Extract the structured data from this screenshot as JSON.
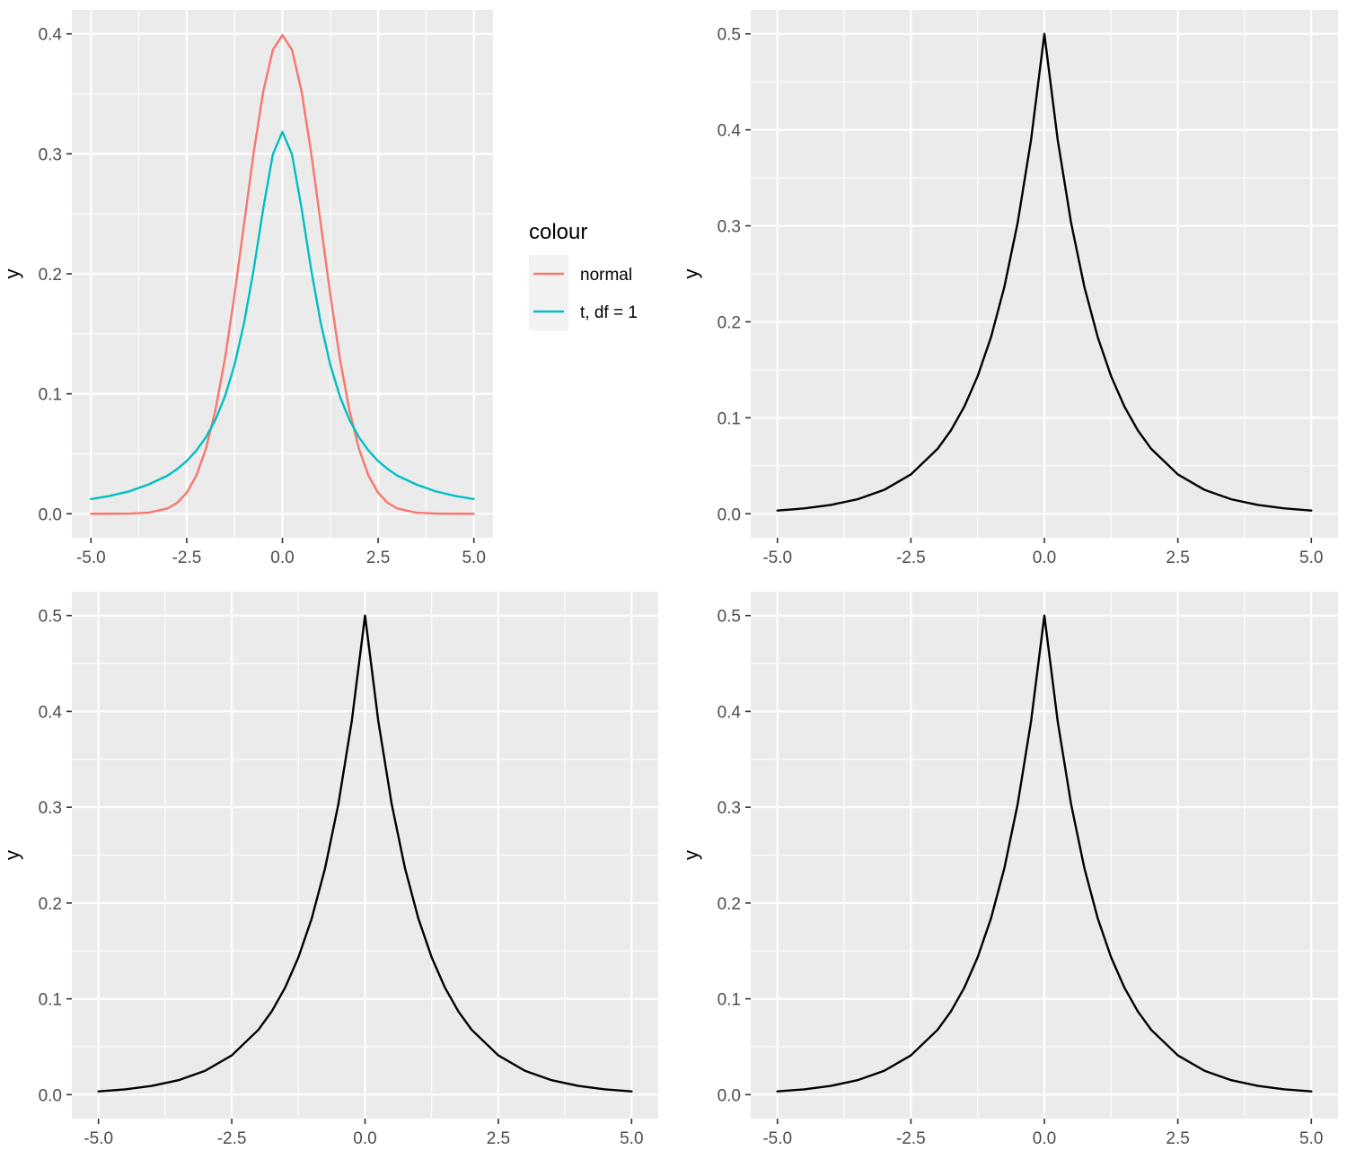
{
  "chart_data": [
    {
      "type": "line",
      "xlabel": "",
      "ylabel": "y",
      "xlim": [
        -5,
        5
      ],
      "ylim": [
        0,
        0.4
      ],
      "xticks": [
        -5,
        -2.5,
        0,
        2.5,
        5
      ],
      "xtick_labels": [
        "-5.0",
        "-2.5",
        "0.0",
        "2.5",
        "5.0"
      ],
      "yticks": [
        0,
        0.1,
        0.2,
        0.3,
        0.4
      ],
      "ytick_labels": [
        "0.0",
        "0.1",
        "0.2",
        "0.3",
        "0.4"
      ],
      "grid": true,
      "legend": {
        "title": "colour",
        "position": "right",
        "entries": [
          "normal",
          "t, df = 1"
        ]
      },
      "series": [
        {
          "name": "normal",
          "color": "#F8766D",
          "x": [
            -5,
            -4.5,
            -4,
            -3.5,
            -3,
            -2.75,
            -2.5,
            -2.25,
            -2,
            -1.75,
            -1.5,
            -1.25,
            -1,
            -0.75,
            -0.5,
            -0.25,
            0,
            0.25,
            0.5,
            0.75,
            1,
            1.25,
            1.5,
            1.75,
            2,
            2.25,
            2.5,
            2.75,
            3,
            3.5,
            4,
            4.5,
            5
          ],
          "y": [
            1.5e-06,
            1.6e-05,
            0.000134,
            0.000873,
            0.00443,
            0.00909,
            0.0175,
            0.0317,
            0.054,
            0.0863,
            0.1295,
            0.1826,
            0.242,
            0.3011,
            0.3521,
            0.3867,
            0.3989,
            0.3867,
            0.3521,
            0.3011,
            0.242,
            0.1826,
            0.1295,
            0.0863,
            0.054,
            0.0317,
            0.0175,
            0.00909,
            0.00443,
            0.000873,
            0.000134,
            1.6e-05,
            1.5e-06
          ]
        },
        {
          "name": "t, df = 1",
          "color": "#00BFC4",
          "x": [
            -5,
            -4.5,
            -4,
            -3.5,
            -3,
            -2.75,
            -2.5,
            -2.25,
            -2,
            -1.75,
            -1.5,
            -1.25,
            -1,
            -0.75,
            -0.5,
            -0.25,
            0,
            0.25,
            0.5,
            0.75,
            1,
            1.25,
            1.5,
            1.75,
            2,
            2.25,
            2.5,
            2.75,
            3,
            3.5,
            4,
            4.5,
            5
          ],
          "y": [
            0.01224,
            0.01496,
            0.01872,
            0.02432,
            0.03183,
            0.03728,
            0.0439,
            0.05264,
            0.06366,
            0.07833,
            0.09794,
            0.1242,
            0.1592,
            0.2037,
            0.2546,
            0.2996,
            0.3183,
            0.2996,
            0.2546,
            0.2037,
            0.1592,
            0.1242,
            0.09794,
            0.07833,
            0.06366,
            0.05264,
            0.0439,
            0.03728,
            0.03183,
            0.02432,
            0.01872,
            0.01496,
            0.01224
          ]
        }
      ]
    },
    {
      "type": "line",
      "xlabel": "",
      "ylabel": "y",
      "xlim": [
        -5,
        5
      ],
      "ylim": [
        0,
        0.5
      ],
      "xticks": [
        -5,
        -2.5,
        0,
        2.5,
        5
      ],
      "xtick_labels": [
        "-5.0",
        "-2.5",
        "0.0",
        "2.5",
        "5.0"
      ],
      "yticks": [
        0,
        0.1,
        0.2,
        0.3,
        0.4,
        0.5
      ],
      "ytick_labels": [
        "0.0",
        "0.1",
        "0.2",
        "0.3",
        "0.4",
        "0.5"
      ],
      "grid": true,
      "series": [
        {
          "color": "#000000",
          "x": [
            -5,
            -4.5,
            -4,
            -3.5,
            -3,
            -2.5,
            -2,
            -1.75,
            -1.5,
            -1.25,
            -1,
            -0.75,
            -0.5,
            -0.25,
            0,
            0.25,
            0.5,
            0.75,
            1,
            1.25,
            1.5,
            1.75,
            2,
            2.5,
            3,
            3.5,
            4,
            4.5,
            5
          ],
          "y": [
            0.00337,
            0.00555,
            0.00916,
            0.0151,
            0.0249,
            0.041,
            0.0677,
            0.0869,
            0.1116,
            0.1433,
            0.1839,
            0.2362,
            0.3033,
            0.3894,
            0.5,
            0.3894,
            0.3033,
            0.2362,
            0.1839,
            0.1433,
            0.1116,
            0.0869,
            0.0677,
            0.041,
            0.0249,
            0.0151,
            0.00916,
            0.00555,
            0.00337
          ]
        }
      ]
    },
    {
      "type": "line",
      "xlabel": "",
      "ylabel": "y",
      "xlim": [
        -5,
        5
      ],
      "ylim": [
        0,
        0.5
      ],
      "xticks": [
        -5,
        -2.5,
        0,
        2.5,
        5
      ],
      "xtick_labels": [
        "-5.0",
        "-2.5",
        "0.0",
        "2.5",
        "5.0"
      ],
      "yticks": [
        0,
        0.1,
        0.2,
        0.3,
        0.4,
        0.5
      ],
      "ytick_labels": [
        "0.0",
        "0.1",
        "0.2",
        "0.3",
        "0.4",
        "0.5"
      ],
      "grid": true,
      "series": [
        {
          "color": "#000000",
          "x": [
            -5,
            -4.5,
            -4,
            -3.5,
            -3,
            -2.5,
            -2,
            -1.75,
            -1.5,
            -1.25,
            -1,
            -0.75,
            -0.5,
            -0.25,
            0,
            0.25,
            0.5,
            0.75,
            1,
            1.25,
            1.5,
            1.75,
            2,
            2.5,
            3,
            3.5,
            4,
            4.5,
            5
          ],
          "y": [
            0.00337,
            0.00555,
            0.00916,
            0.0151,
            0.0249,
            0.041,
            0.0677,
            0.0869,
            0.1116,
            0.1433,
            0.1839,
            0.2362,
            0.3033,
            0.3894,
            0.5,
            0.3894,
            0.3033,
            0.2362,
            0.1839,
            0.1433,
            0.1116,
            0.0869,
            0.0677,
            0.041,
            0.0249,
            0.0151,
            0.00916,
            0.00555,
            0.00337
          ]
        }
      ]
    },
    {
      "type": "line",
      "xlabel": "",
      "ylabel": "y",
      "xlim": [
        -5,
        5
      ],
      "ylim": [
        0,
        0.5
      ],
      "xticks": [
        -5,
        -2.5,
        0,
        2.5,
        5
      ],
      "xtick_labels": [
        "-5.0",
        "-2.5",
        "0.0",
        "2.5",
        "5.0"
      ],
      "yticks": [
        0,
        0.1,
        0.2,
        0.3,
        0.4,
        0.5
      ],
      "ytick_labels": [
        "0.0",
        "0.1",
        "0.2",
        "0.3",
        "0.4",
        "0.5"
      ],
      "grid": true,
      "series": [
        {
          "color": "#000000",
          "x": [
            -5,
            -4.5,
            -4,
            -3.5,
            -3,
            -2.5,
            -2,
            -1.75,
            -1.5,
            -1.25,
            -1,
            -0.75,
            -0.5,
            -0.25,
            0,
            0.25,
            0.5,
            0.75,
            1,
            1.25,
            1.5,
            1.75,
            2,
            2.5,
            3,
            3.5,
            4,
            4.5,
            5
          ],
          "y": [
            0.00337,
            0.00555,
            0.00916,
            0.0151,
            0.0249,
            0.041,
            0.0677,
            0.0869,
            0.1116,
            0.1433,
            0.1839,
            0.2362,
            0.3033,
            0.3894,
            0.5,
            0.3894,
            0.3033,
            0.2362,
            0.1839,
            0.1433,
            0.1116,
            0.0869,
            0.0677,
            0.041,
            0.0249,
            0.0151,
            0.00916,
            0.00555,
            0.00337
          ]
        }
      ]
    }
  ]
}
